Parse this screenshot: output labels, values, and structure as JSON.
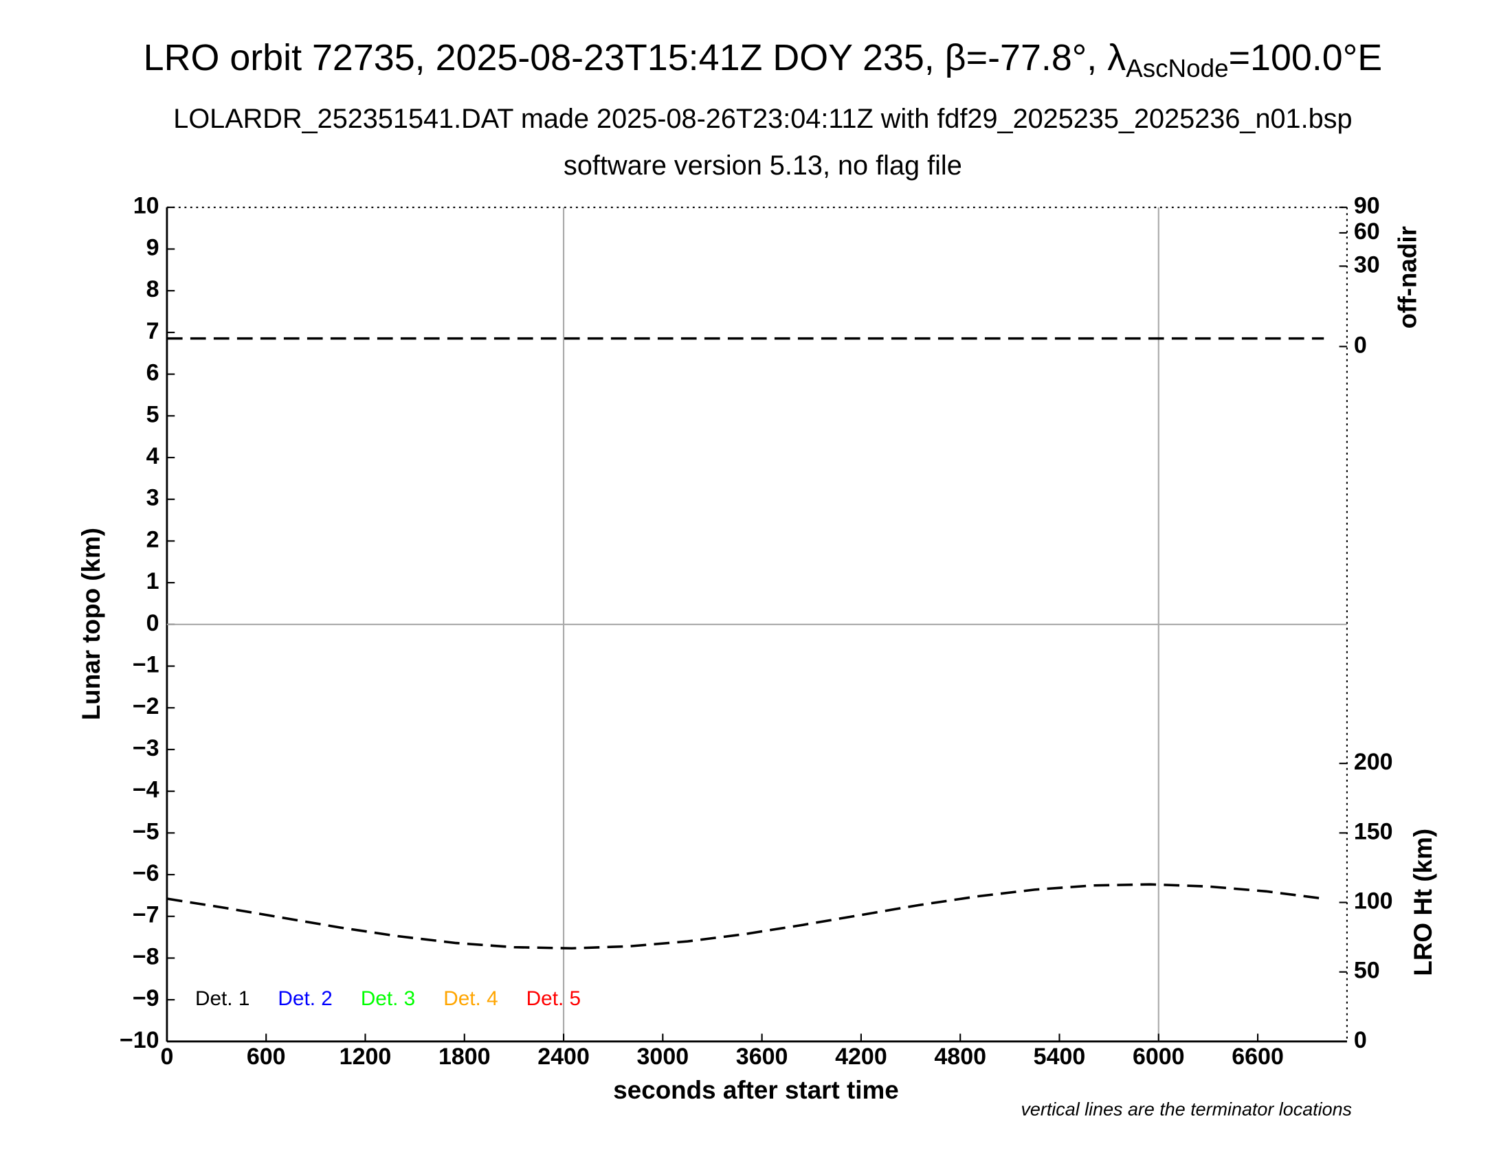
{
  "chart_data": {
    "type": "line",
    "title": [
      "LRO orbit 72735, 2025-08-23T15:41Z DOY 235, β=-77.8°, λ",
      "AscNode",
      "=100.0°E"
    ],
    "subtitle": [
      "LOLARDR_252351541.DAT made 2025-08-26T23:04:11Z with fdf29_2025235_2025236_n01.bsp",
      "software version 5.13, no flag file"
    ],
    "x_label": "seconds after start time",
    "y_label": "Lunar topo (km)",
    "y2_label": "off-nadir",
    "y3_label": "LRO Ht (km)",
    "note": "vertical lines are the terminator locations",
    "xlim": [
      0,
      7140
    ],
    "xticks": [
      0,
      600,
      1200,
      1800,
      2400,
      3000,
      3600,
      4200,
      4800,
      5400,
      6000,
      6600
    ],
    "ylim": [
      -10,
      10
    ],
    "yticks": [
      {
        "value": -10,
        "label": "−10"
      },
      {
        "value": -9,
        "label": "−9"
      },
      {
        "value": -8,
        "label": "−8"
      },
      {
        "value": -7,
        "label": "−7"
      },
      {
        "value": -6,
        "label": "−6"
      },
      {
        "value": -5,
        "label": "−5"
      },
      {
        "value": -4,
        "label": "−4"
      },
      {
        "value": -3,
        "label": "−3"
      },
      {
        "value": -2,
        "label": "−2"
      },
      {
        "value": -1,
        "label": "−1"
      },
      0,
      1,
      2,
      3,
      4,
      5,
      6,
      7,
      8,
      9,
      10
    ],
    "y2lim": [
      0,
      90
    ],
    "y2ticks": [
      0,
      30,
      60,
      90
    ],
    "y2scale": "sqrt",
    "y3lim": [
      0,
      600
    ],
    "y3ticks": [
      0,
      50,
      100,
      150,
      200
    ],
    "terminators": [
      2400,
      6000
    ],
    "x": [
      0,
      350,
      700,
      1050,
      1400,
      1750,
      2100,
      2450,
      2800,
      3150,
      3500,
      3850,
      4200,
      4550,
      4900,
      5250,
      5600,
      5950,
      6300,
      6650,
      7000
    ],
    "series": [
      {
        "name": "off-nadir",
        "color": "#000000",
        "axis": "y2",
        "values": [
          0.3,
          0.3,
          0.3,
          0.3,
          0.3,
          0.3,
          0.3,
          0.3,
          0.3,
          0.3,
          0.3,
          0.3,
          0.3,
          0.3,
          0.3,
          0.3,
          0.3,
          0.3,
          0.3,
          0.3,
          0.3
        ]
      },
      {
        "name": "LRO Ht",
        "color": "#000000",
        "axis": "y3",
        "values": [
          102.7,
          96.1,
          89.0,
          81.9,
          75.7,
          70.8,
          67.8,
          67.0,
          68.5,
          72.0,
          77.3,
          83.9,
          91.0,
          98.1,
          104.3,
          109.2,
          112.2,
          113.0,
          111.5,
          108.0,
          102.7
        ]
      }
    ],
    "detectors": [
      {
        "name": "Det. 1",
        "color": "#000000"
      },
      {
        "name": "Det. 2",
        "color": "#0000ff"
      },
      {
        "name": "Det. 3",
        "color": "#00ff00"
      },
      {
        "name": "Det. 4",
        "color": "#ffa500"
      },
      {
        "name": "Det. 5",
        "color": "#ff0000"
      }
    ]
  }
}
